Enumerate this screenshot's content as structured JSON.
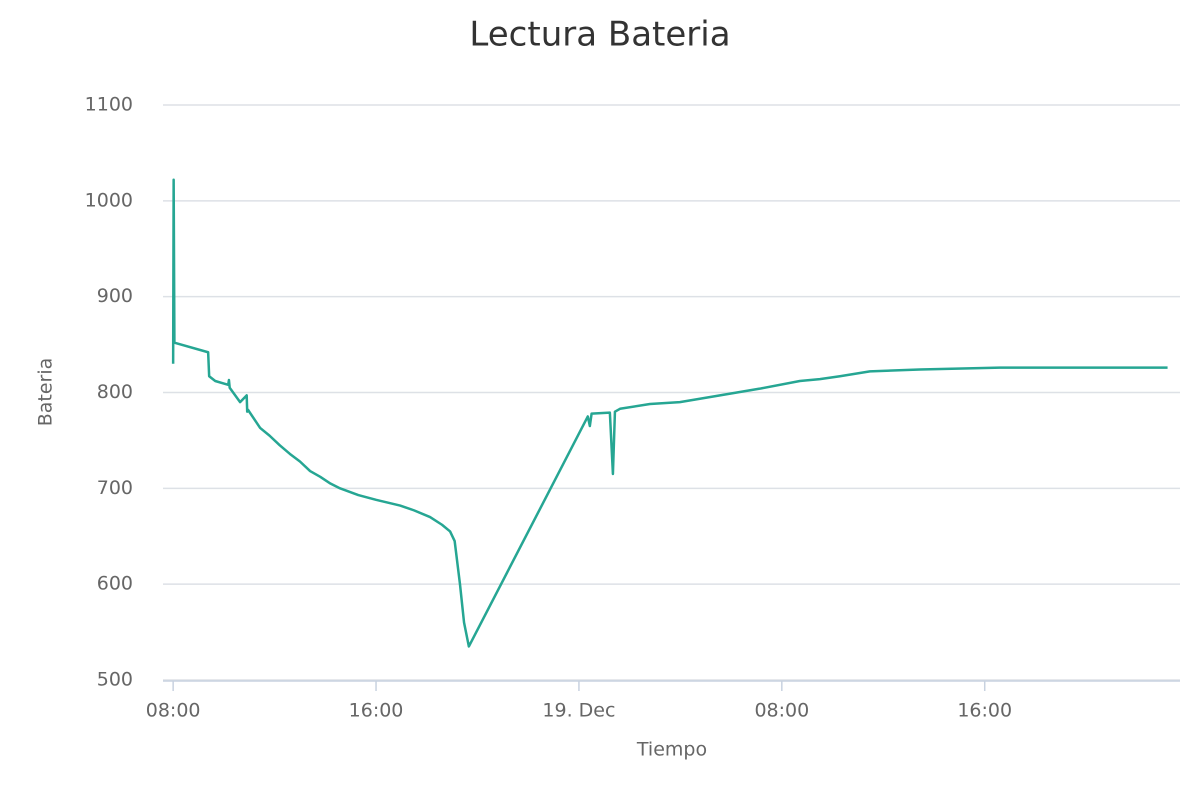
{
  "chart_data": {
    "type": "line",
    "title": "Lectura Bateria",
    "x_label": "Tiempo",
    "y_label": "Bateria",
    "x": [
      8.0,
      8.02,
      8.05,
      9.38,
      9.42,
      9.66,
      10.17,
      10.2,
      10.23,
      10.64,
      10.9,
      10.92,
      10.95,
      11.43,
      11.8,
      12.2,
      12.6,
      13.0,
      13.4,
      13.8,
      14.2,
      14.58,
      15.3,
      16.0,
      16.95,
      17.5,
      18.13,
      18.6,
      18.92,
      19.1,
      19.31,
      19.47,
      19.66,
      24.35,
      24.43,
      24.5,
      25.22,
      25.34,
      25.42,
      25.62,
      26.8,
      27.98,
      29.56,
      31.13,
      32.71,
      33.5,
      34.29,
      35.47,
      37.44,
      40.6,
      47.21
    ],
    "values": [
      830,
      1022,
      852,
      842,
      817,
      812,
      808,
      813,
      805,
      790,
      797,
      780,
      782,
      763,
      755,
      745,
      736,
      728,
      718,
      712,
      705,
      700,
      693,
      688,
      682,
      677,
      670,
      662,
      655,
      645,
      600,
      560,
      535,
      775,
      765,
      778,
      779,
      715,
      780,
      783,
      788,
      790,
      797,
      804,
      812,
      814,
      817,
      822,
      824,
      826,
      826
    ],
    "color": "#26a693",
    "xlim": [
      7.6,
      47.7
    ],
    "xticks": [
      {
        "value": 8,
        "label": "08:00"
      },
      {
        "value": 16,
        "label": "16:00"
      },
      {
        "value": 24,
        "label": "19. Dec"
      },
      {
        "value": 32,
        "label": "08:00"
      },
      {
        "value": 40,
        "label": "16:00"
      }
    ],
    "ylim": [
      500,
      1100
    ],
    "yticks": [
      500,
      600,
      700,
      800,
      900,
      1000,
      1100
    ],
    "grid": true
  }
}
